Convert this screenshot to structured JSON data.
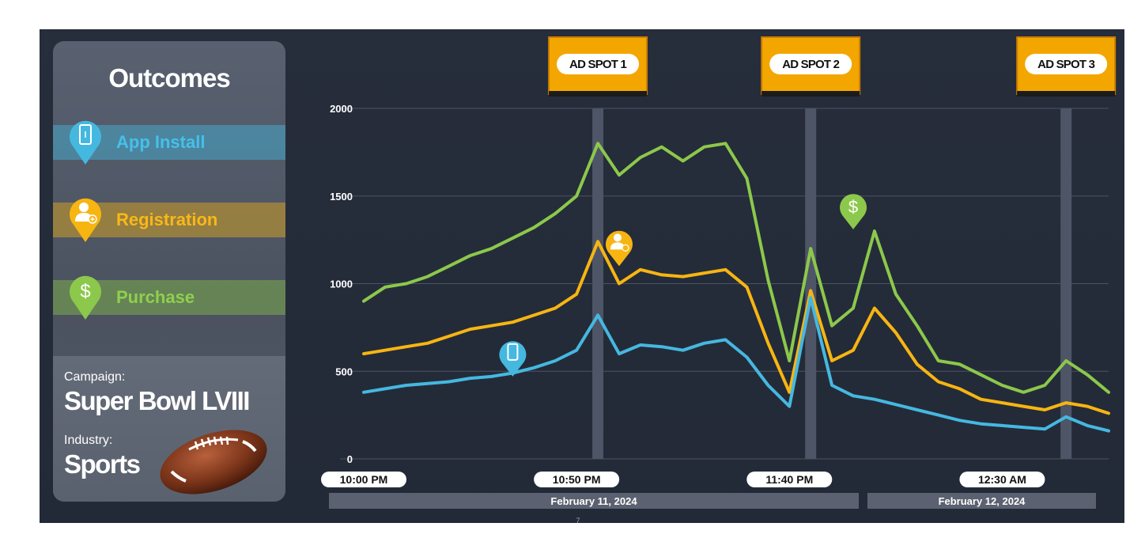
{
  "outcomes": {
    "title": "Outcomes",
    "items": [
      {
        "label": "App Install",
        "icon": "phone-icon",
        "color": "#45b8e0"
      },
      {
        "label": "Registration",
        "icon": "user-add-icon",
        "color": "#f7b512"
      },
      {
        "label": "Purchase",
        "icon": "dollar-icon",
        "color": "#8cc84b"
      }
    ]
  },
  "campaign": {
    "campaign_label": "Campaign:",
    "campaign_name": "Super Bowl LVIII",
    "industry_label": "Industry:",
    "industry_name": "Sports"
  },
  "ad_spots": [
    {
      "label": "AD SPOT 1",
      "time": "10:55 PM"
    },
    {
      "label": "AD SPOT 2",
      "time": "11:45 PM"
    },
    {
      "label": "AD SPOT 3",
      "time": "12:45 AM"
    }
  ],
  "dates": [
    "February 11, 2024",
    "February 12, 2024"
  ],
  "page_number": "7",
  "chart_data": {
    "type": "line",
    "x_ticks": [
      "10:00 PM",
      "10:50 PM",
      "11:40 PM",
      "12:30 AM"
    ],
    "ylim": [
      0,
      2000
    ],
    "y_ticks": [
      0,
      500,
      1000,
      1500,
      2000
    ],
    "x_range": [
      "10:00 PM",
      "12:55 AM"
    ],
    "grid": true,
    "x": [
      "10:00 PM",
      "10:05 PM",
      "10:10 PM",
      "10:15 PM",
      "10:20 PM",
      "10:25 PM",
      "10:30 PM",
      "10:35 PM",
      "10:40 PM",
      "10:45 PM",
      "10:50 PM",
      "10:55 PM",
      "11:00 PM",
      "11:05 PM",
      "11:10 PM",
      "11:15 PM",
      "11:20 PM",
      "11:25 PM",
      "11:30 PM",
      "11:35 PM",
      "11:40 PM",
      "11:45 PM",
      "11:50 PM",
      "11:55 PM",
      "12:00 AM",
      "12:05 AM",
      "12:10 AM",
      "12:15 AM",
      "12:20 AM",
      "12:25 AM",
      "12:30 AM",
      "12:35 AM",
      "12:40 AM",
      "12:45 AM",
      "12:50 AM",
      "12:55 AM"
    ],
    "series": [
      {
        "name": "Purchase",
        "color": "#8cc84b",
        "values": [
          900,
          980,
          1000,
          1040,
          1100,
          1160,
          1200,
          1260,
          1320,
          1400,
          1500,
          1800,
          1620,
          1720,
          1780,
          1700,
          1780,
          1800,
          1600,
          1020,
          560,
          1200,
          760,
          860,
          1300,
          940,
          760,
          560,
          540,
          480,
          420,
          380,
          420,
          560,
          480,
          380
        ]
      },
      {
        "name": "Registration",
        "color": "#f7b512",
        "values": [
          600,
          620,
          640,
          660,
          700,
          740,
          760,
          780,
          820,
          860,
          940,
          1240,
          1000,
          1080,
          1050,
          1040,
          1060,
          1080,
          980,
          660,
          380,
          960,
          560,
          620,
          860,
          720,
          540,
          440,
          400,
          340,
          320,
          300,
          280,
          320,
          300,
          260
        ]
      },
      {
        "name": "App Install",
        "color": "#45b8e0",
        "values": [
          380,
          400,
          420,
          430,
          440,
          460,
          470,
          490,
          520,
          560,
          620,
          820,
          600,
          650,
          640,
          620,
          660,
          680,
          580,
          420,
          300,
          920,
          420,
          360,
          340,
          310,
          280,
          250,
          220,
          200,
          190,
          180,
          170,
          240,
          190,
          160
        ]
      }
    ],
    "markers": [
      {
        "series": "App Install",
        "icon": "phone-icon",
        "x": "10:35 PM",
        "y": 470
      },
      {
        "series": "Registration",
        "icon": "user-add-icon",
        "x": "11:00 PM",
        "y": 1100
      },
      {
        "series": "Purchase",
        "icon": "dollar-icon",
        "x": "11:55 PM",
        "y": 1310
      }
    ]
  }
}
